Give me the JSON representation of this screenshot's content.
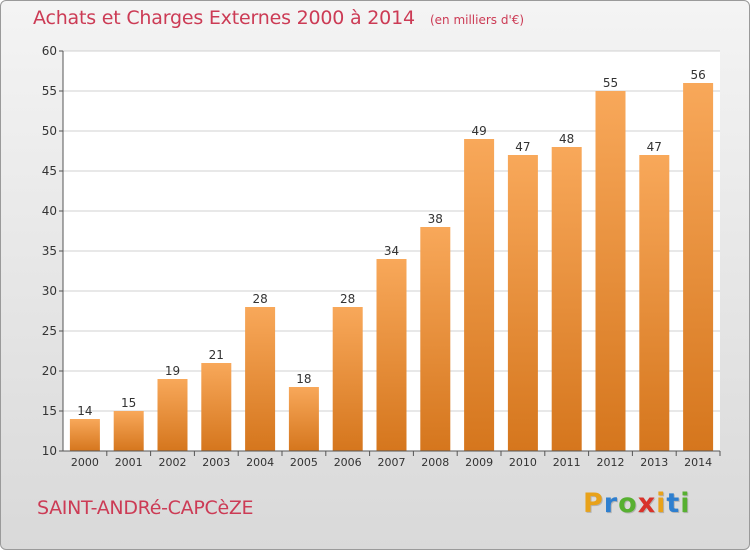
{
  "header": {
    "title": "Achats et Charges Externes 2000 à 2014",
    "subtitle": "(en milliers d'€)"
  },
  "footer": {
    "commune": "SAINT-ANDRé-CAPCèZE",
    "logo_letters": [
      "P",
      "r",
      "o",
      "x",
      "i",
      "t",
      "i"
    ],
    "logo_colors": [
      "#e8a21a",
      "#2e7fcf",
      "#57b031",
      "#d8322a",
      "#e8a21a",
      "#2e7fcf",
      "#57b031"
    ]
  },
  "colors": {
    "title": "#cc3b55",
    "bar_light": "#f8a85a",
    "bar_dark": "#d5761d",
    "grid": "#d0d0d0",
    "axis_text": "#333333"
  },
  "chart_data": {
    "type": "bar",
    "title": "Achats et Charges Externes 2000 à 2014",
    "subtitle": "(en milliers d'€)",
    "xlabel": "",
    "ylabel": "",
    "categories": [
      "2000",
      "2001",
      "2002",
      "2003",
      "2004",
      "2005",
      "2006",
      "2007",
      "2008",
      "2009",
      "2010",
      "2011",
      "2012",
      "2013",
      "2014"
    ],
    "values": [
      14,
      15,
      19,
      21,
      28,
      18,
      28,
      34,
      38,
      49,
      47,
      48,
      55,
      47,
      56
    ],
    "ylim": [
      10,
      60
    ],
    "yticks": [
      10,
      15,
      20,
      25,
      30,
      35,
      40,
      45,
      50,
      55,
      60
    ],
    "grid": true,
    "legend": "none"
  }
}
